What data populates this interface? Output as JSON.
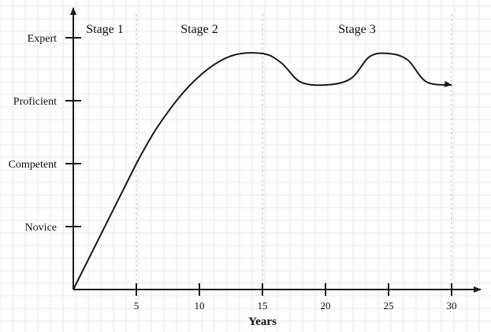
{
  "colors": {
    "background": "#ffffff",
    "grid": "#e9e9e9",
    "axis": "#1a1a1a",
    "curve": "#1a1a1a",
    "stage_divider": "#bbbbbb"
  },
  "stages": [
    {
      "label": "Stage 1",
      "start": 0,
      "end": 5
    },
    {
      "label": "Stage 2",
      "start": 5,
      "end": 15
    },
    {
      "label": "Stage 3",
      "start": 15,
      "end": 30
    }
  ],
  "chart_data": {
    "type": "line",
    "title": "",
    "xlabel": "Years",
    "ylabel": "",
    "x_ticks": [
      5,
      10,
      15,
      20,
      25,
      30
    ],
    "xlim": [
      0,
      30
    ],
    "y_levels": [
      "Novice",
      "Competent",
      "Proficient",
      "Expert"
    ],
    "ylim": [
      0,
      4
    ],
    "grid": true,
    "legend": "none",
    "series": [
      {
        "x": [
          0,
          5,
          7.5,
          10,
          12.5,
          15,
          16.5,
          18,
          20,
          22,
          23.5,
          25,
          26.5,
          28,
          30
        ],
        "values": [
          0,
          2,
          2.82,
          3.39,
          3.71,
          3.75,
          3.6,
          3.3,
          3.25,
          3.35,
          3.7,
          3.75,
          3.65,
          3.3,
          3.25
        ]
      }
    ]
  }
}
